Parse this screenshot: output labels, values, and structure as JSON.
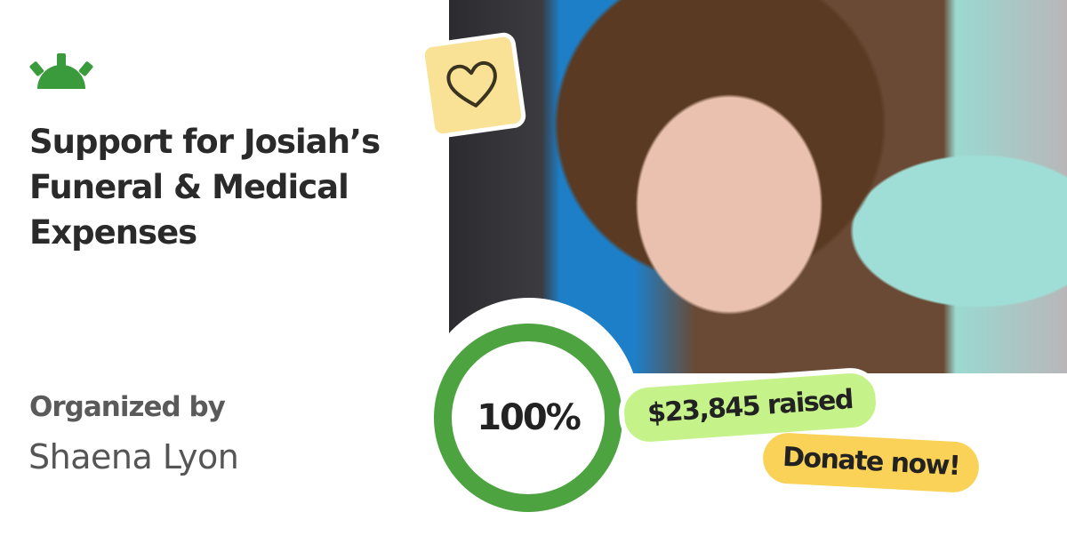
{
  "brand": {
    "logo_icon": "gofundme-sunrise-icon",
    "color": "#3a9b3d"
  },
  "campaign": {
    "title": "Support for Josiah’s Funeral & Medical Expenses",
    "organizer_label": "Organized by",
    "organizer_name": "Shaena Lyon",
    "photo": "boy-portrait-photo",
    "progress_percent": 100,
    "progress_label": "100%",
    "raised_label": "$23,845 raised",
    "donate_label": "Donate now!"
  },
  "colors": {
    "progress": "#4ca33f",
    "raised_pill": "#c6f28a",
    "donate_pill": "#fad257",
    "heart_tile": "#f9e295"
  },
  "icons": {
    "heart": "heart-icon"
  }
}
